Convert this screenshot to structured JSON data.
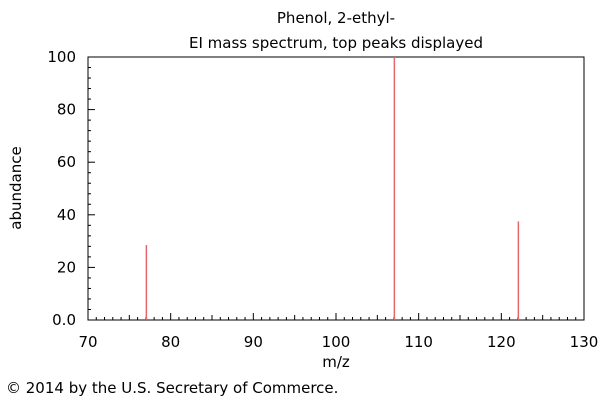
{
  "chart_data": {
    "type": "bar",
    "title": "Phenol, 2-ethyl-",
    "subtitle": "EI mass spectrum, top peaks displayed",
    "xlabel": "m/z",
    "ylabel": "abundance",
    "xlim": [
      70,
      130
    ],
    "ylim": [
      0,
      100
    ],
    "x_ticks": [
      70,
      80,
      90,
      100,
      110,
      120,
      130
    ],
    "y_ticks": [
      "0.0",
      "20",
      "40",
      "60",
      "80",
      "100"
    ],
    "peaks": [
      {
        "mz": 77,
        "abundance": 28.5
      },
      {
        "mz": 107,
        "abundance": 100
      },
      {
        "mz": 122,
        "abundance": 37.5
      }
    ],
    "peak_color": "#e8676b",
    "grid": false
  },
  "footer": {
    "copyright": "© 2014 by the U.S. Secretary of Commerce."
  }
}
